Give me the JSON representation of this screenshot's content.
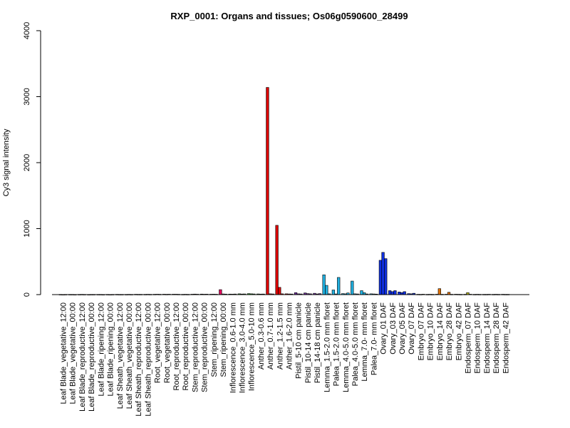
{
  "chart_data": {
    "type": "bar",
    "title": "RXP_0001: Organs and tissues; Os06g0590600_28499",
    "xlabel": "",
    "ylabel": "Cy3 signal intensity",
    "ylim": [
      0,
      4000
    ],
    "yticks": [
      0,
      1000,
      2000,
      3000,
      4000
    ],
    "grid": false,
    "groups": [
      {
        "label": "Leaf Blade_vegetative_12:00",
        "color": "#ff80c0",
        "values": [
          3,
          2,
          3
        ]
      },
      {
        "label": "Leaf Blade_vegetative_00:00",
        "color": "#ff80c0",
        "values": [
          3,
          3,
          2
        ]
      },
      {
        "label": "Leaf Blade_reproductive_12:00",
        "color": "#ff80c0",
        "values": [
          3,
          4,
          3
        ]
      },
      {
        "label": "Leaf Blade_reproductive_00:00",
        "color": "#ff80c0",
        "values": [
          2,
          3,
          3
        ]
      },
      {
        "label": "Leaf Blade_ripening_12:00",
        "color": "#ff80c0",
        "values": [
          3,
          3,
          2
        ]
      },
      {
        "label": "Leaf Blade_ripening_00:00",
        "color": "#ff80c0",
        "values": [
          3,
          2,
          3
        ]
      },
      {
        "label": "Leaf Sheath_vegetative_12:00",
        "color": "#ff80c0",
        "values": [
          4,
          3,
          3
        ]
      },
      {
        "label": "Leaf Sheath_vegetative_00:00",
        "color": "#ff80c0",
        "values": [
          3,
          4,
          3
        ]
      },
      {
        "label": "Leaf Sheath_reproductive_12:00",
        "color": "#ff80c0",
        "values": [
          5,
          4,
          4
        ]
      },
      {
        "label": "Leaf Sheath_reproductive_00:00",
        "color": "#ff80c0",
        "values": [
          4,
          5,
          4
        ]
      },
      {
        "label": "Root_vegetative_12:00",
        "color": "#ff80c0",
        "values": [
          5,
          6,
          5
        ]
      },
      {
        "label": "Root_vegetative_00:00",
        "color": "#ff80c0",
        "values": [
          6,
          5,
          6
        ]
      },
      {
        "label": "Root_reproductive_12:00",
        "color": "#ff80c0",
        "values": [
          6,
          6,
          5
        ]
      },
      {
        "label": "Root_reproductive_00:00",
        "color": "#ff80c0",
        "values": [
          4,
          5,
          4
        ]
      },
      {
        "label": "Stem_reproductive_12:00",
        "color": "#ff80c0",
        "values": [
          6,
          8,
          6
        ]
      },
      {
        "label": "Stem_reproductive_00:00",
        "color": "#ff80c0",
        "values": [
          8,
          6,
          7
        ]
      },
      {
        "label": "Stem_ripening_12:00",
        "color": "#ff80c0",
        "values": [
          6,
          7,
          6
        ]
      },
      {
        "label": "Stem_ripening_00:00",
        "color": "#e0005a",
        "values": [
          75,
          10,
          8
        ]
      },
      {
        "label": "Inflorescence_0.6-1.0 mm",
        "color": "#22aa22",
        "values": [
          8,
          7,
          9
        ]
      },
      {
        "label": "Inflorescence_3.0-4.0 mm",
        "color": "#22aa22",
        "values": [
          12,
          9,
          10
        ]
      },
      {
        "label": "Inflorescence_5.0-10 mm",
        "color": "#22aa22",
        "values": [
          15,
          12,
          10
        ]
      },
      {
        "label": "Anther_0.3-0.6 mm",
        "color": "#22aa22",
        "values": [
          10,
          8,
          9
        ]
      },
      {
        "label": "Anther_0.7-1.0 mm",
        "color": "#dd0000",
        "values": [
          3140,
          12,
          10
        ]
      },
      {
        "label": "Anther_1.2-1.5 mm",
        "color": "#dd0000",
        "values": [
          1050,
          110,
          12
        ]
      },
      {
        "label": "Anther_1.6-2.0 mm",
        "color": "#dd0000",
        "values": [
          12,
          10,
          9
        ]
      },
      {
        "label": "Pistil_5-10 cm panicle",
        "color": "#7030a0",
        "values": [
          30,
          12,
          10
        ]
      },
      {
        "label": "Pistil_10-14 cm panicle",
        "color": "#7030a0",
        "values": [
          25,
          15,
          12
        ]
      },
      {
        "label": "Pistil_14-18 cm panicle",
        "color": "#7030a0",
        "values": [
          20,
          10,
          15
        ]
      },
      {
        "label": "Lemma_1.5-2.0 mm floret",
        "color": "#20b0e0",
        "values": [
          300,
          140,
          12
        ]
      },
      {
        "label": "Palea_1.5-2.0 mm floret",
        "color": "#20b0e0",
        "values": [
          70,
          10,
          260
        ]
      },
      {
        "label": "Lemma_4.0-5.0 mm floret",
        "color": "#20b0e0",
        "values": [
          15,
          12,
          25
        ]
      },
      {
        "label": "Palea_4.0-5.0 mm floret",
        "color": "#20b0e0",
        "values": [
          205,
          12,
          10
        ]
      },
      {
        "label": "Lemma_7.0- mm floret",
        "color": "#20b0e0",
        "values": [
          60,
          30,
          10
        ]
      },
      {
        "label": "Palea_7.0- mm floret",
        "color": "#20b0e0",
        "values": [
          12,
          10,
          8
        ]
      },
      {
        "label": "Ovary_01 DAF",
        "color": "#1030e0",
        "values": [
          520,
          640,
          545
        ]
      },
      {
        "label": "Ovary_03 DAF",
        "color": "#1030e0",
        "values": [
          60,
          45,
          60
        ]
      },
      {
        "label": "Ovary_05 DAF",
        "color": "#1030e0",
        "values": [
          40,
          30,
          45
        ]
      },
      {
        "label": "Ovary_07 DAF",
        "color": "#1030e0",
        "values": [
          15,
          12,
          20
        ]
      },
      {
        "label": "Embryo_07 DAF",
        "color": "#e07000",
        "values": [
          5,
          4,
          6
        ]
      },
      {
        "label": "Embryo_10 DAF",
        "color": "#e07000",
        "values": [
          4,
          5,
          4
        ]
      },
      {
        "label": "Embryo_14 DAF",
        "color": "#e07000",
        "values": [
          6,
          90,
          5
        ]
      },
      {
        "label": "Embryo_28 DAF",
        "color": "#e07000",
        "values": [
          6,
          35,
          5
        ]
      },
      {
        "label": "Embryo_42 DAF",
        "color": "#e07000",
        "values": [
          6,
          5,
          4
        ]
      },
      {
        "label": "Endosperm_07 DAF",
        "color": "#b0b020",
        "values": [
          5,
          30,
          6
        ]
      },
      {
        "label": "Endosperm_10 DAF",
        "color": "#b0b020",
        "values": [
          4,
          5,
          4
        ]
      },
      {
        "label": "Endosperm_14 DAF",
        "color": "#b0b020",
        "values": [
          4,
          4,
          5
        ]
      },
      {
        "label": "Endosperm_28 DAF",
        "color": "#b0b020",
        "values": [
          4,
          5,
          4
        ]
      },
      {
        "label": "Endosperm_42 DAF",
        "color": "#b0b020",
        "values": [
          5,
          4,
          4
        ]
      }
    ]
  }
}
